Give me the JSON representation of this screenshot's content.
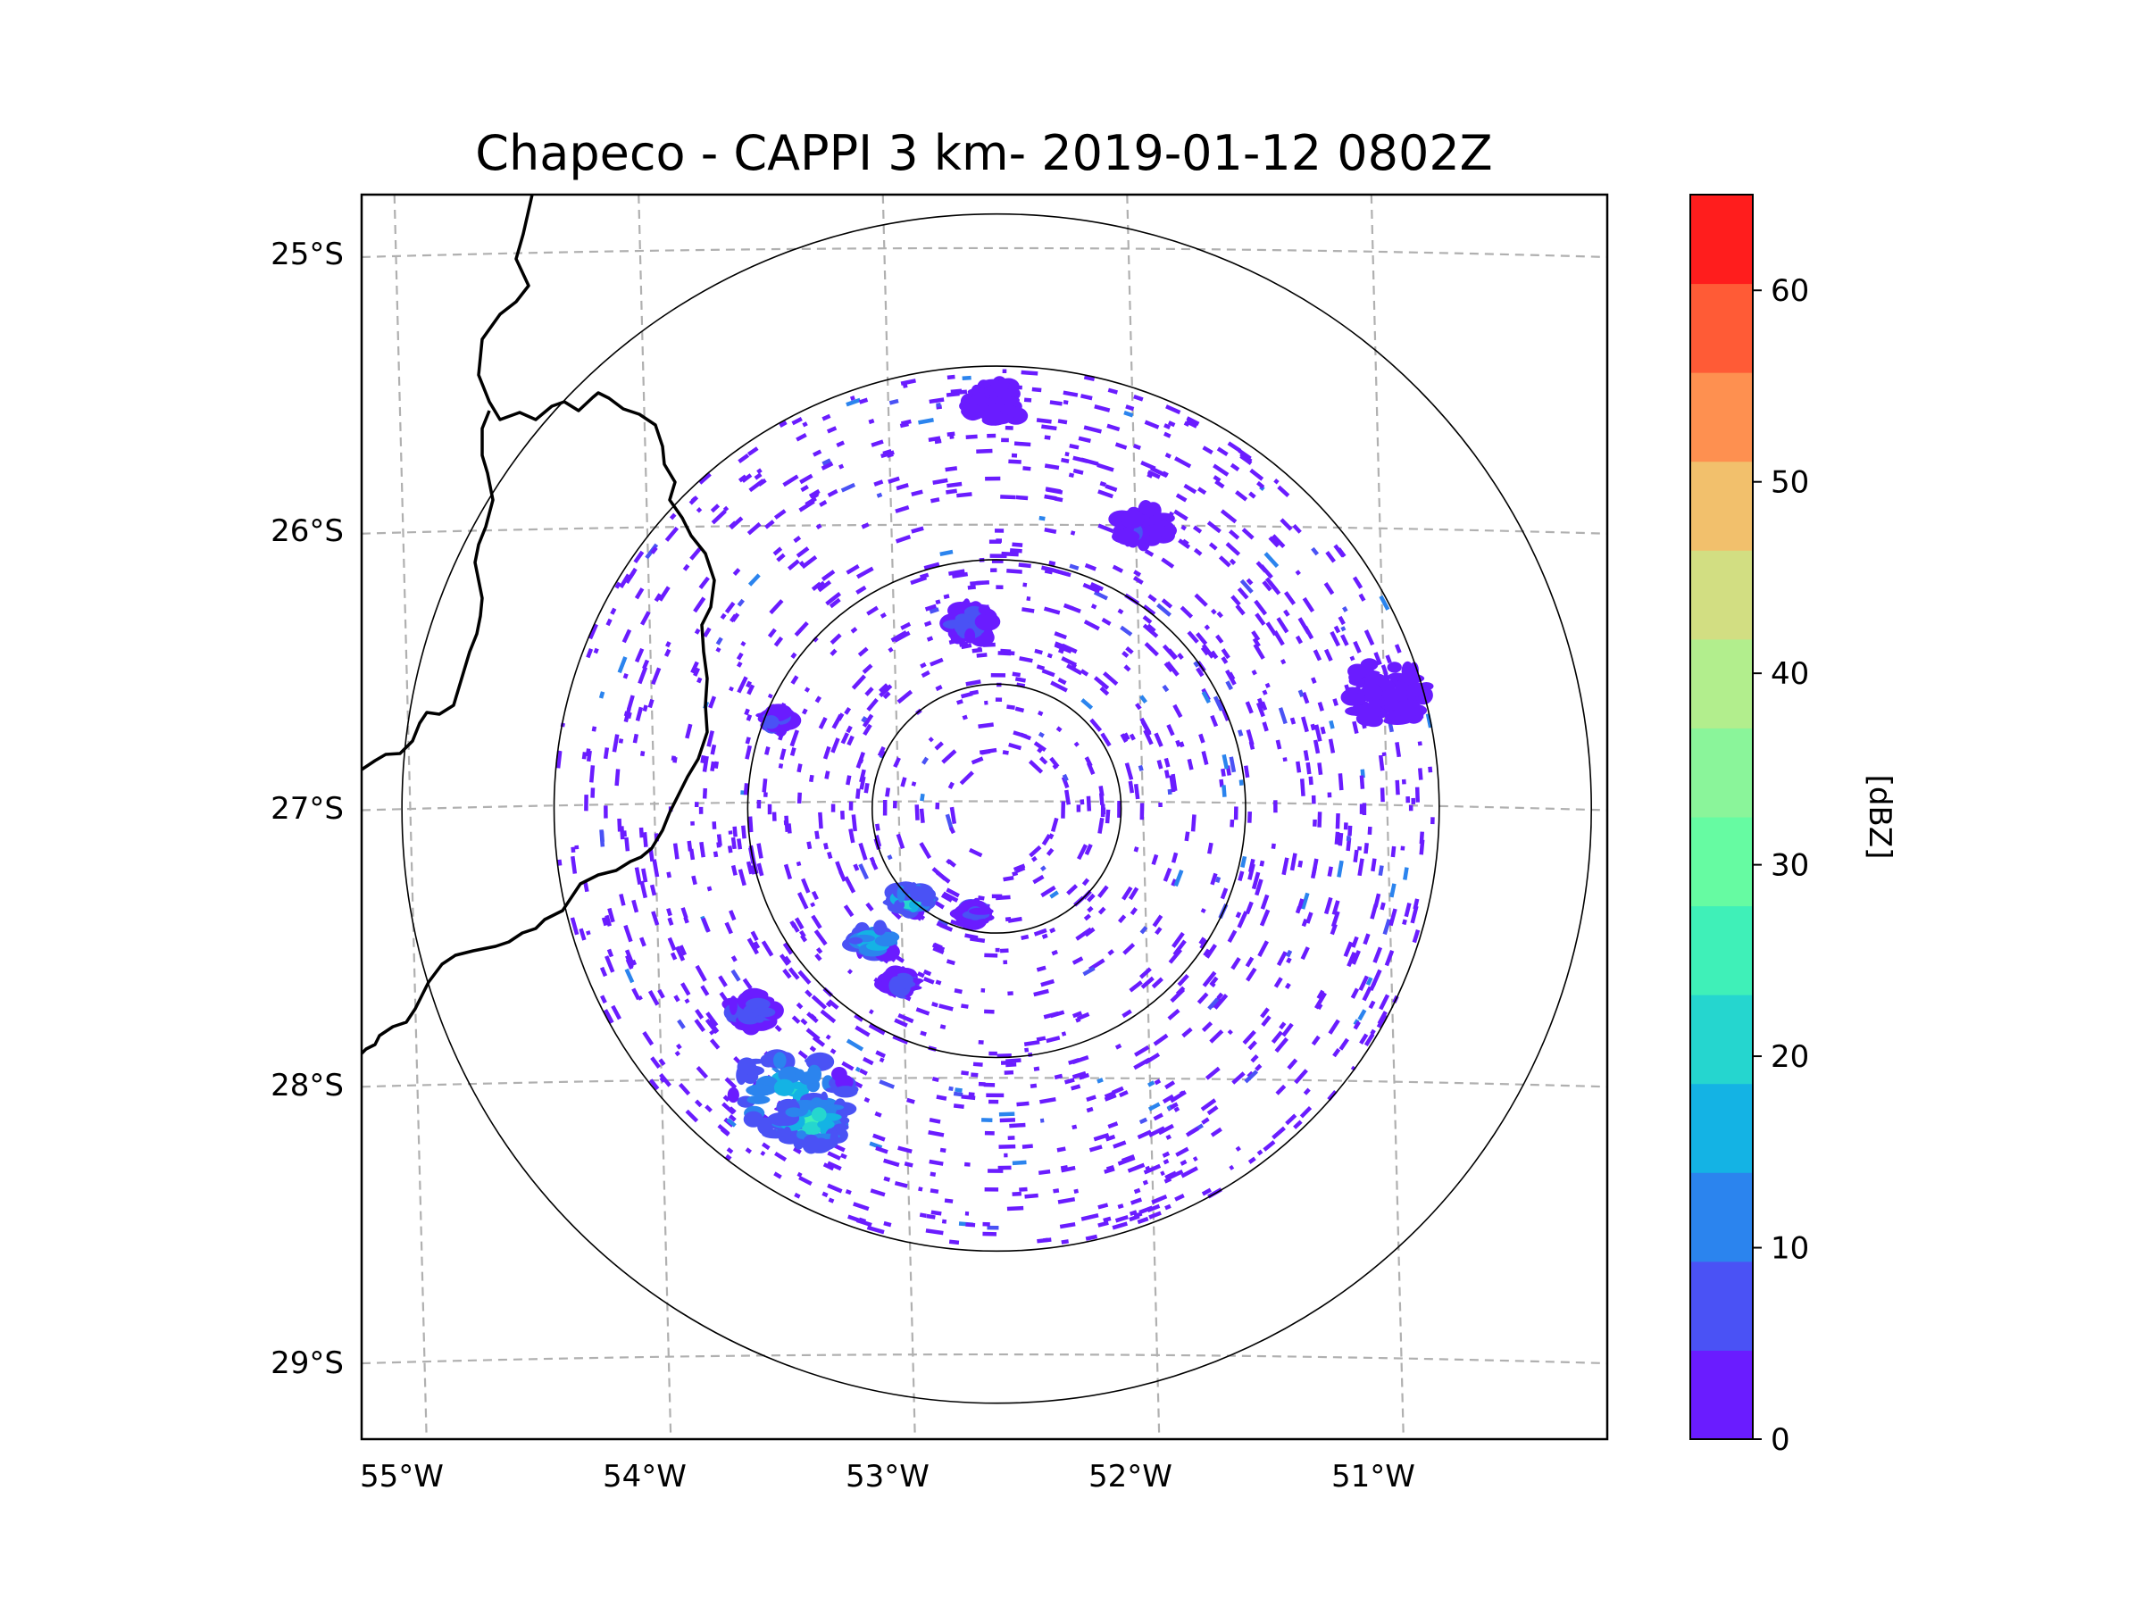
{
  "chart_data": {
    "type": "heatmap",
    "title": "Chapeco - CAPPI 3 km- 2019-01-12 0802Z",
    "radar_site": "Chapeco",
    "product": "CAPPI 3 km",
    "datetime": "2019-01-12 0802Z",
    "x_ticks": [
      "55°W",
      "54°W",
      "53°W",
      "52°W",
      "51°W"
    ],
    "y_ticks": [
      "25°S",
      "26°S",
      "27°S",
      "28°S",
      "29°S"
    ],
    "lon_range": [
      -55.2,
      -50.1
    ],
    "lat_range": [
      -29.3,
      -24.8
    ],
    "radar_center": {
      "lon": -52.6,
      "lat": -27.02
    },
    "range_rings_deg_lat": [
      0.45,
      0.9,
      1.6,
      2.15
    ],
    "colorbar": {
      "label": "[dBZ]",
      "ticks": [
        "0",
        "10",
        "20",
        "30",
        "40",
        "50",
        "60"
      ],
      "min": 0,
      "max": 65,
      "step": 5,
      "colors": [
        "#6a1cff",
        "#4a52f5",
        "#2b84ee",
        "#14b3e4",
        "#25d6cf",
        "#3ff0b8",
        "#66fba2",
        "#8af59a",
        "#b2ee8d",
        "#d2de82",
        "#f2c06c",
        "#fe9050",
        "#ff5b36",
        "#ff1d1d"
      ]
    },
    "echo_cells": [
      {
        "lon": -53.45,
        "lat": -28.05,
        "dbz": 18,
        "size": 0.22
      },
      {
        "lon": -53.35,
        "lat": -28.15,
        "dbz": 25,
        "size": 0.12
      },
      {
        "lon": -53.6,
        "lat": -27.75,
        "dbz": 10,
        "size": 0.08
      },
      {
        "lon": -53.1,
        "lat": -27.5,
        "dbz": 20,
        "size": 0.07
      },
      {
        "lon": -52.95,
        "lat": -27.35,
        "dbz": 22,
        "size": 0.06
      },
      {
        "lon": -53.0,
        "lat": -27.65,
        "dbz": 10,
        "size": 0.05
      },
      {
        "lon": -52.7,
        "lat": -26.35,
        "dbz": 8,
        "size": 0.08
      },
      {
        "lon": -52.6,
        "lat": -25.55,
        "dbz": 3,
        "size": 0.1
      },
      {
        "lon": -52.0,
        "lat": -26.0,
        "dbz": 5,
        "size": 0.09
      },
      {
        "lon": -51.0,
        "lat": -26.6,
        "dbz": 3,
        "size": 0.15
      },
      {
        "lon": -53.5,
        "lat": -26.7,
        "dbz": 8,
        "size": 0.04
      },
      {
        "lon": -52.7,
        "lat": -27.4,
        "dbz": 6,
        "size": 0.04
      }
    ]
  }
}
